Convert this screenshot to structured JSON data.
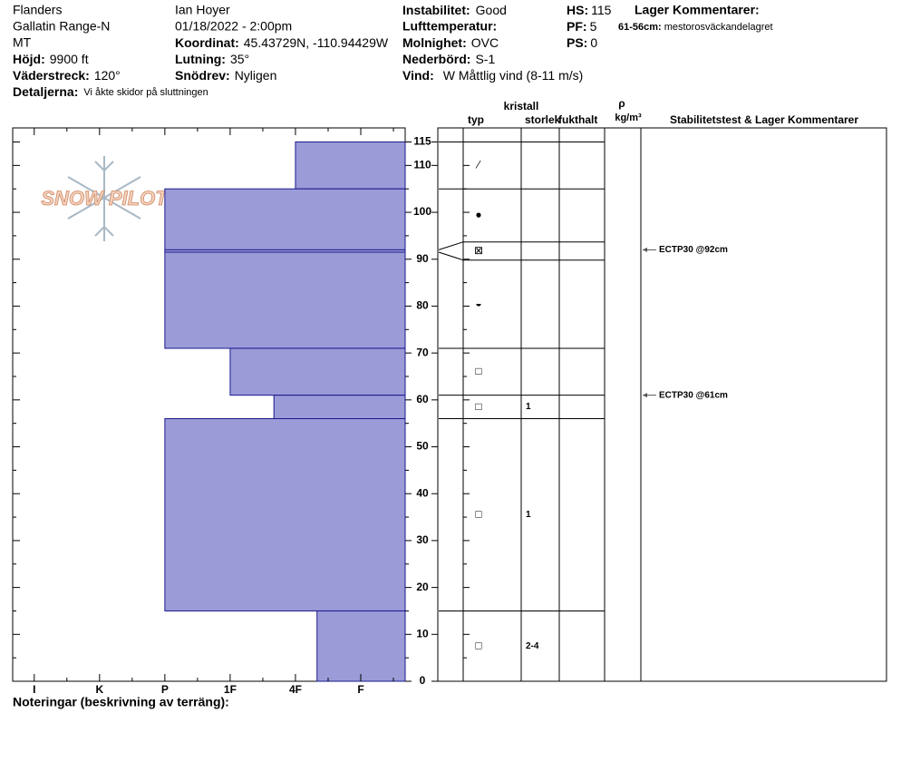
{
  "header": {
    "location": "Flanders",
    "range": "Gallatin Range-N",
    "state": "MT",
    "elevation": {
      "label": "Höjd:",
      "value": "9900 ft"
    },
    "aspect": {
      "label": "Väderstreck:",
      "value": "120°"
    },
    "details": {
      "label": "Detaljerna:",
      "value": "Vi åkte skidor på sluttningen"
    },
    "observer": "Ian Hoyer",
    "datetime": "01/18/2022 - 2:00pm",
    "coordinates": {
      "label": "Koordinat:",
      "value": "45.43729N, -110.94429W"
    },
    "slope": {
      "label": "Lutning:",
      "value": "35°"
    },
    "wind_loading": {
      "label": "Snödrev:",
      "value": "Nyligen"
    },
    "instability": {
      "label": "Instabilitet:",
      "value": "Good"
    },
    "air_temp": {
      "label": "Lufttemperatur:"
    },
    "sky": {
      "label": "Molnighet:",
      "value": "OVC"
    },
    "precip": {
      "label": "Nederbörd:",
      "value": "S-1"
    },
    "wind": {
      "label": "Vind:",
      "value": "W Måttlig vind (8-11 m/s)"
    },
    "hs": {
      "label": "HS:",
      "value": 115
    },
    "pf": {
      "label": "PF:",
      "value": 5
    },
    "ps": {
      "label": "PS:",
      "value": 0
    },
    "layer_comments": {
      "title": "Lager Kommentarer:",
      "items": [
        {
          "label": "61-56cm:",
          "value": "mestorosväckandelagret"
        }
      ]
    }
  },
  "logo": "SNOW PILOT",
  "columns": {
    "type": "typ",
    "crystal": "kristall",
    "size": "storlek",
    "moisture": "fukthalt",
    "rho": "ρ",
    "density_unit": "kg/m³",
    "tests": "Stabilitetstest & Lager Kommentarer"
  },
  "profile": {
    "depth_lim": [
      0,
      118
    ],
    "depth_ticks": [
      0,
      10,
      20,
      30,
      40,
      50,
      60,
      70,
      80,
      90,
      100,
      110,
      115
    ],
    "depth_minor": [
      5,
      15,
      25,
      35,
      45,
      55,
      65,
      75,
      85,
      95,
      105
    ],
    "hardness_lim": [
      6.33,
      0.32
    ],
    "hardness_ticks": [
      {
        "value": 6,
        "label": "I"
      },
      {
        "value": 5,
        "label": "K"
      },
      {
        "value": 4,
        "label": "P"
      },
      {
        "value": 3,
        "label": "1F"
      },
      {
        "value": 2,
        "label": "4F"
      },
      {
        "value": 1,
        "label": "F"
      }
    ],
    "hardness_minor": [
      5.5,
      4.5,
      3.5,
      2.5,
      1.5,
      0.5
    ],
    "bar_color": "#9b9bd8",
    "layers": [
      {
        "top": 115,
        "bottom": 105,
        "hardness": 2,
        "grain": "⁄"
      },
      {
        "top": 105,
        "bottom": 92,
        "hardness": 4,
        "grain": "●"
      },
      {
        "top": 92,
        "bottom": 91.5,
        "hardness": 4,
        "grain": "⊠"
      },
      {
        "top": 91.5,
        "bottom": 71,
        "hardness": 4,
        "grain": "◒"
      },
      {
        "top": 71,
        "bottom": 61,
        "hardness": 3,
        "grain": "□"
      },
      {
        "top": 61,
        "bottom": 56,
        "hardness": 2.33,
        "grain": "□",
        "size": "1"
      },
      {
        "top": 56,
        "bottom": 15,
        "hardness": 4,
        "grain": "□",
        "size": "1"
      },
      {
        "top": 15,
        "bottom": 0,
        "hardness": 1.67,
        "grain": "□",
        "size": "2-4"
      }
    ],
    "tests": [
      {
        "label": "ECTP30 @92cm",
        "depth": 92
      },
      {
        "label": "ECTP30 @61cm",
        "depth": 61
      }
    ]
  },
  "footer": "Noteringar (beskrivning av terräng):"
}
